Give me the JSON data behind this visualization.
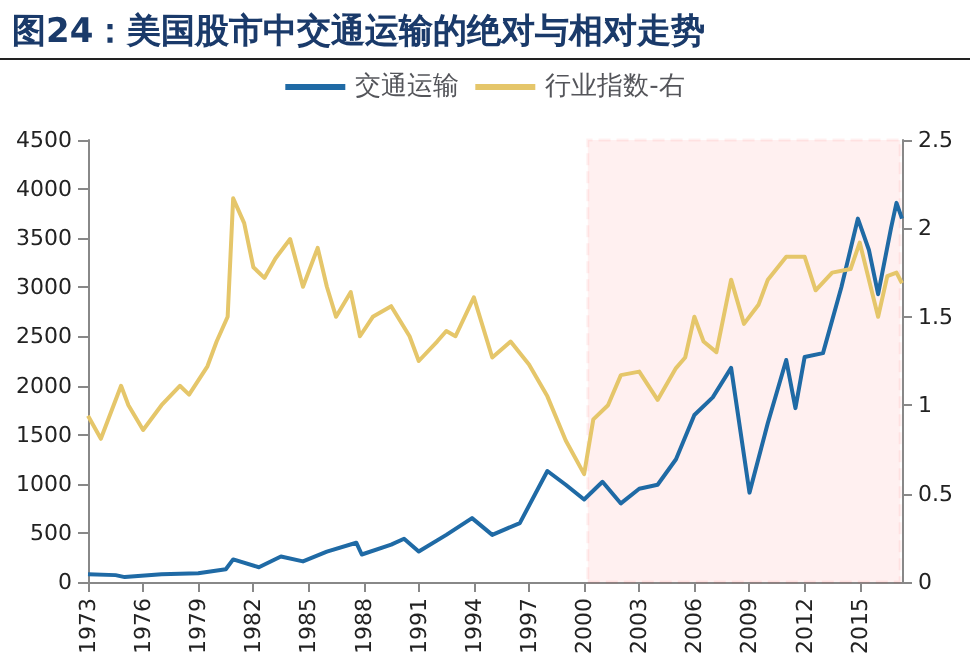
{
  "chart_data": {
    "type": "line",
    "title": "图24：美国股市中交通运输的绝对与相对走势",
    "xlim": [
      1973,
      2017.3
    ],
    "xticks": [
      1973,
      1976,
      1979,
      1982,
      1985,
      1988,
      1991,
      1994,
      1997,
      2000,
      2003,
      2006,
      2009,
      2012,
      2015
    ],
    "ylim": [
      0,
      4500
    ],
    "yticks": [
      0,
      500,
      1000,
      1500,
      2000,
      2500,
      3000,
      3500,
      4000,
      4500
    ],
    "y2lim": [
      0,
      2.5
    ],
    "y2ticks": [
      0,
      0.5,
      1,
      1.5,
      2,
      2.5
    ],
    "grid": false,
    "legend": "top",
    "marker": "none",
    "line_style": "solid",
    "bands": [
      {
        "axis": "x",
        "from": 2000.2,
        "to": 2017.2,
        "color": "#ff0000"
      }
    ],
    "series": [
      {
        "name": "交通运输",
        "color": "#1f6aa5",
        "x": [
          1973,
          1974.5,
          1975,
          1977,
          1979,
          1980.5,
          1980.9,
          1982.3,
          1983.5,
          1984.7,
          1986,
          1987.6,
          1987.9,
          1989.5,
          1990.2,
          1991,
          1992.5,
          1993.9,
          1995,
          1996.5,
          1998,
          1999,
          2000,
          2001,
          2002,
          2003,
          2004,
          2005,
          2006,
          2007,
          2008,
          2009,
          2010,
          2011,
          2011.5,
          2012,
          2013,
          2014,
          2014.9,
          2015.5,
          2016,
          2016.7,
          2017,
          2017.3
        ],
        "values": [
          80,
          70,
          50,
          80,
          90,
          130,
          230,
          150,
          260,
          210,
          310,
          400,
          280,
          380,
          440,
          310,
          480,
          650,
          480,
          600,
          1130,
          990,
          840,
          1020,
          800,
          950,
          990,
          1250,
          1700,
          1880,
          2180,
          910,
          1620,
          2260,
          1770,
          2290,
          2330,
          3000,
          3700,
          3380,
          2930,
          3600,
          3860,
          3700
        ]
      },
      {
        "name": "行业指数-右",
        "color": "#e5c66a",
        "axis": "y2",
        "x": [
          1973,
          1973.7,
          1974.8,
          1975.2,
          1976,
          1977,
          1978,
          1978.5,
          1979.5,
          1980,
          1980.6,
          1980.9,
          1981.5,
          1982,
          1982.6,
          1983.2,
          1984,
          1984.7,
          1985.5,
          1986,
          1986.5,
          1987.3,
          1987.8,
          1988.5,
          1989.5,
          1990.5,
          1991,
          1992,
          1992.5,
          1993,
          1994,
          1995,
          1996,
          1997,
          1998,
          1999,
          2000,
          2000.5,
          2001.3,
          2002,
          2003,
          2004,
          2005,
          2005.5,
          2006,
          2006.5,
          2007.2,
          2008,
          2008.7,
          2009.5,
          2010,
          2011,
          2012,
          2012.6,
          2013.5,
          2014.5,
          2015,
          2015.5,
          2016,
          2016.5,
          2017,
          2017.3
        ],
        "values": [
          0.94,
          0.81,
          1.11,
          1.0,
          0.86,
          1.0,
          1.11,
          1.06,
          1.22,
          1.36,
          1.5,
          2.17,
          2.03,
          1.78,
          1.72,
          1.83,
          1.94,
          1.67,
          1.89,
          1.67,
          1.5,
          1.64,
          1.39,
          1.5,
          1.56,
          1.39,
          1.25,
          1.36,
          1.42,
          1.39,
          1.61,
          1.27,
          1.36,
          1.23,
          1.05,
          0.8,
          0.61,
          0.92,
          1.0,
          1.17,
          1.19,
          1.03,
          1.21,
          1.27,
          1.5,
          1.36,
          1.3,
          1.71,
          1.46,
          1.57,
          1.71,
          1.84,
          1.84,
          1.65,
          1.75,
          1.77,
          1.92,
          1.71,
          1.5,
          1.73,
          1.75,
          1.69
        ]
      }
    ]
  }
}
